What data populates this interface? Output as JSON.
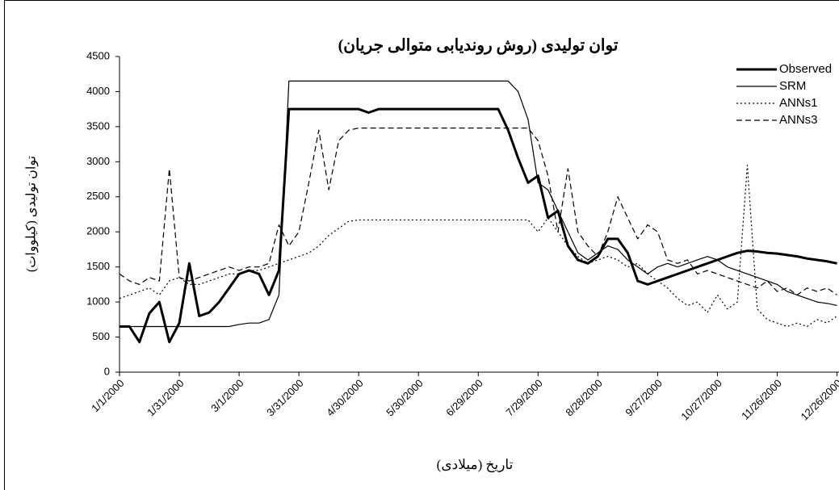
{
  "chart_data": {
    "type": "line",
    "title": "توان تولیدی (روش روندیابی متوالی جریان)",
    "x_label": "تاریخ (میلادی)",
    "y_label": "توان تولیدی (کیلووات)",
    "x": [
      "1/1/2000",
      "1/6/2000",
      "1/11/2000",
      "1/16/2000",
      "1/21/2000",
      "1/26/2000",
      "1/31/2000",
      "2/5/2000",
      "2/10/2000",
      "2/15/2000",
      "2/20/2000",
      "2/25/2000",
      "3/1/2000",
      "3/6/2000",
      "3/11/2000",
      "3/16/2000",
      "3/21/2000",
      "3/26/2000",
      "3/31/2000",
      "4/5/2000",
      "4/10/2000",
      "4/15/2000",
      "4/20/2000",
      "4/25/2000",
      "4/30/2000",
      "5/5/2000",
      "5/10/2000",
      "5/15/2000",
      "5/20/2000",
      "5/25/2000",
      "5/30/2000",
      "6/4/2000",
      "6/9/2000",
      "6/14/2000",
      "6/19/2000",
      "6/24/2000",
      "6/29/2000",
      "7/4/2000",
      "7/9/2000",
      "7/14/2000",
      "7/19/2000",
      "7/24/2000",
      "7/29/2000",
      "8/3/2000",
      "8/8/2000",
      "8/13/2000",
      "8/18/2000",
      "8/23/2000",
      "8/28/2000",
      "9/2/2000",
      "9/7/2000",
      "9/12/2000",
      "9/17/2000",
      "9/22/2000",
      "9/27/2000",
      "10/2/2000",
      "10/7/2000",
      "10/12/2000",
      "10/17/2000",
      "10/22/2000",
      "10/27/2000",
      "11/1/2000",
      "11/6/2000",
      "11/11/2000",
      "11/16/2000",
      "11/21/2000",
      "11/26/2000",
      "12/1/2000",
      "12/6/2000",
      "12/11/2000",
      "12/16/2000",
      "12/21/2000",
      "12/26/2000"
    ],
    "series": [
      {
        "name": "Observed",
        "color": "#000000",
        "width": 3,
        "dash": "solid",
        "values": [
          650,
          650,
          430,
          840,
          1000,
          430,
          700,
          1550,
          800,
          850,
          1000,
          1200,
          1400,
          1450,
          1400,
          1100,
          1450,
          3750,
          3750,
          3750,
          3750,
          3750,
          3750,
          3750,
          3750,
          3700,
          3750,
          3750,
          3750,
          3750,
          3750,
          3750,
          3750,
          3750,
          3750,
          3750,
          3750,
          3750,
          3750,
          3450,
          3050,
          2700,
          2800,
          2200,
          2300,
          1800,
          1600,
          1550,
          1650,
          1900,
          1900,
          1700,
          1300,
          1250,
          1300,
          1350,
          1400,
          1450,
          1500,
          1550,
          1600,
          1650,
          1700,
          1730,
          1720,
          1700,
          1690,
          1670,
          1650,
          1620,
          1600,
          1580,
          1550
        ]
      },
      {
        "name": "SRM",
        "color": "#000000",
        "width": 1.2,
        "dash": "solid",
        "values": [
          650,
          650,
          650,
          650,
          650,
          650,
          650,
          650,
          650,
          650,
          650,
          650,
          680,
          700,
          700,
          750,
          1100,
          4150,
          4150,
          4150,
          4150,
          4150,
          4150,
          4150,
          4150,
          4150,
          4150,
          4150,
          4150,
          4150,
          4150,
          4150,
          4150,
          4150,
          4150,
          4150,
          4150,
          4150,
          4150,
          4150,
          4000,
          3600,
          2700,
          2600,
          2300,
          2000,
          1700,
          1600,
          1700,
          1800,
          1750,
          1600,
          1500,
          1400,
          1500,
          1550,
          1500,
          1550,
          1600,
          1650,
          1600,
          1500,
          1450,
          1400,
          1350,
          1300,
          1250,
          1150,
          1100,
          1050,
          1000,
          980,
          950
        ]
      },
      {
        "name": "ANNs1",
        "color": "#000000",
        "width": 1.2,
        "dash": "dotted",
        "values": [
          1050,
          1100,
          1150,
          1200,
          1100,
          1300,
          1350,
          1250,
          1250,
          1300,
          1350,
          1400,
          1400,
          1450,
          1450,
          1500,
          1550,
          1600,
          1650,
          1700,
          1800,
          1950,
          2050,
          2150,
          2170,
          2170,
          2170,
          2170,
          2170,
          2170,
          2170,
          2170,
          2170,
          2170,
          2170,
          2170,
          2170,
          2170,
          2170,
          2170,
          2170,
          2170,
          2000,
          2200,
          2000,
          1800,
          1650,
          1550,
          1600,
          1650,
          1600,
          1500,
          1550,
          1400,
          1300,
          1200,
          1050,
          950,
          1000,
          850,
          1100,
          900,
          1000,
          2950,
          900,
          750,
          700,
          650,
          700,
          650,
          750,
          700,
          800
        ]
      },
      {
        "name": "ANNs3",
        "color": "#000000",
        "width": 1.2,
        "dash": "dashed",
        "values": [
          1400,
          1300,
          1250,
          1350,
          1300,
          2900,
          1350,
          1300,
          1350,
          1400,
          1450,
          1500,
          1450,
          1500,
          1500,
          1550,
          2100,
          1800,
          2000,
          2700,
          3450,
          2600,
          3300,
          3450,
          3480,
          3480,
          3480,
          3480,
          3480,
          3480,
          3480,
          3480,
          3480,
          3480,
          3480,
          3480,
          3480,
          3480,
          3480,
          3480,
          3480,
          3480,
          3300,
          2800,
          2000,
          2900,
          2000,
          1800,
          1650,
          2000,
          2500,
          2200,
          1900,
          2100,
          2000,
          1600,
          1550,
          1600,
          1400,
          1450,
          1400,
          1350,
          1300,
          1250,
          1200,
          1300,
          1150,
          1200,
          1100,
          1200,
          1150,
          1200,
          1100
        ]
      }
    ],
    "xlim": [
      "1/1/2000",
      "12/27/2000"
    ],
    "xticks": [
      "1/1/2000",
      "1/31/2000",
      "3/1/2000",
      "3/31/2000",
      "4/30/2000",
      "5/30/2000",
      "6/29/2000",
      "7/29/2000",
      "8/28/2000",
      "9/27/2000",
      "10/27/2000",
      "11/26/2000",
      "12/26/2000"
    ],
    "ylim": [
      0,
      4500
    ],
    "yticks": [
      0,
      500,
      1000,
      1500,
      2000,
      2500,
      3000,
      3500,
      4000,
      4500
    ],
    "grid": false,
    "legend": "upper right"
  }
}
